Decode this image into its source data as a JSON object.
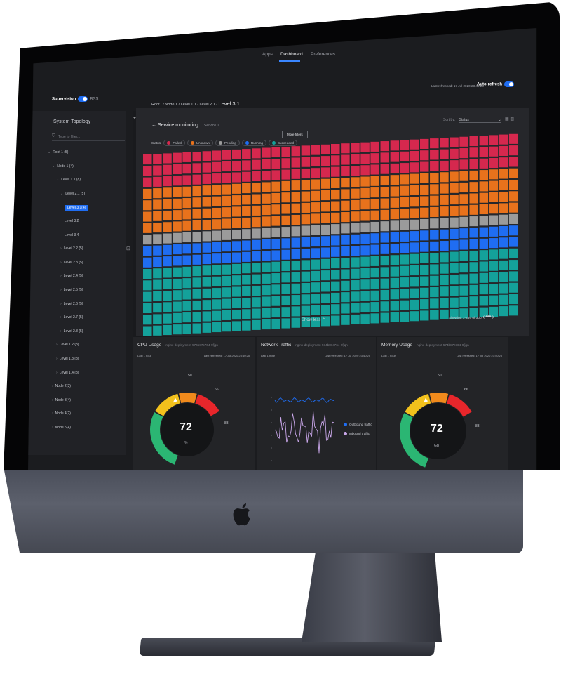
{
  "nav": {
    "items": [
      "Apps",
      "Dashboard",
      "Preferences"
    ],
    "active": "Dashboard"
  },
  "header": {
    "app_name": "Supervision",
    "env": "BSS",
    "last_refreshed": "Last refreshed: 17 Jul 2020 23:40:25",
    "auto_refresh": "Auto-refresh"
  },
  "sidebar": {
    "title": "System Topology",
    "filter_placeholder": "Type to filter...",
    "tab": "Topology",
    "items": [
      {
        "label": "Root 1 (5)",
        "level": 0,
        "expanded": true
      },
      {
        "label": "Node 1 (4)",
        "level": 1,
        "expanded": true
      },
      {
        "label": "Level 1.1 (8)",
        "level": 2,
        "expanded": true
      },
      {
        "label": "Level 2.1 (5)",
        "level": 3,
        "expanded": true
      },
      {
        "label": "Level 3.1(4)",
        "level": 4,
        "selected": true
      },
      {
        "label": "Level 3.2",
        "level": 4
      },
      {
        "label": "Level 3.4",
        "level": 4
      },
      {
        "label": "Level 2.2 (5)",
        "level": 3
      },
      {
        "label": "Level 2.3 (5)",
        "level": 3
      },
      {
        "label": "Level 2.4 (5)",
        "level": 3
      },
      {
        "label": "Level 2.5 (5)",
        "level": 3
      },
      {
        "label": "Level 2.6 (5)",
        "level": 3
      },
      {
        "label": "Level 2.7 (5)",
        "level": 3
      },
      {
        "label": "Level 2.8 (5)",
        "level": 3
      },
      {
        "label": "Level 1.2 (8)",
        "level": 2
      },
      {
        "label": "Level 1.3 (8)",
        "level": 2
      },
      {
        "label": "Level 1.4 (8)",
        "level": 2
      },
      {
        "label": "Node 2(3)",
        "level": 1
      },
      {
        "label": "Node 3(4)",
        "level": 1
      },
      {
        "label": "Node 4(2)",
        "level": 1
      },
      {
        "label": "Node 5(4)",
        "level": 1
      }
    ]
  },
  "main": {
    "breadcrumb": "Root1 / Node 1 / Level 1.1 / Level 2.1 /",
    "breadcrumb_current": "Level 3.1",
    "service_title": "Service monitoring",
    "service_sub": "Service 1",
    "sort_label": "Sort by:",
    "sort_value": "Status",
    "status_label": "Status",
    "statuses": [
      {
        "label": "Failed",
        "color": "#d6284e"
      },
      {
        "label": "Unknown",
        "color": "#e8721c"
      },
      {
        "label": "Pending",
        "color": "#9b9b9b"
      },
      {
        "label": "Running",
        "color": "#1f6df2"
      },
      {
        "label": "Succeeded",
        "color": "#14a19a"
      }
    ],
    "more_filters": "More filters",
    "grid_rows": [
      {
        "status": "Failed",
        "rows": 3
      },
      {
        "status": "Unknown",
        "rows": 4
      },
      {
        "status": "Pending",
        "rows": 1
      },
      {
        "status": "Running",
        "rows": 2
      },
      {
        "status": "Succeeded",
        "rows": 6
      }
    ],
    "show_less": "Show less",
    "showing": "Showing 1-246",
    "showing_total": "of 300"
  },
  "cards": {
    "cpu": {
      "title": "CPU Usage",
      "sub": "nginx-deployment-574b87c764-9fjqn",
      "range": "Last 1 hour",
      "refreshed": "Last refreshed: 17 Jul 2020 23:40:25",
      "value": "72",
      "unit": "%",
      "ticks": [
        "50",
        "66",
        "83"
      ]
    },
    "network": {
      "title": "Network Traffic",
      "sub": "nginx-deployment-574b87c764-9fjqn",
      "range": "Last 1 hour",
      "refreshed": "Last refreshed: 17 Jul 2020 23:40:25",
      "legend": [
        {
          "label": "Outbound traffic",
          "color": "#1f6df2"
        },
        {
          "label": "Inbound traffic",
          "color": "#c9a7ea"
        }
      ]
    },
    "memory": {
      "title": "Memory Usage",
      "sub": "nginx-deployment-574b87c764-9fjqn",
      "range": "Last 1 hour",
      "refreshed": "Last refreshed: 17 Jul 2020 23:40:25",
      "value": "72",
      "unit": "GB",
      "ticks": [
        "50",
        "66",
        "83"
      ]
    }
  },
  "colors": {
    "accent": "#1f6df2",
    "gauge_green": "#2bb673",
    "gauge_yellow": "#f2c11c",
    "gauge_orange": "#f08a1c",
    "gauge_red": "#e8262b"
  }
}
